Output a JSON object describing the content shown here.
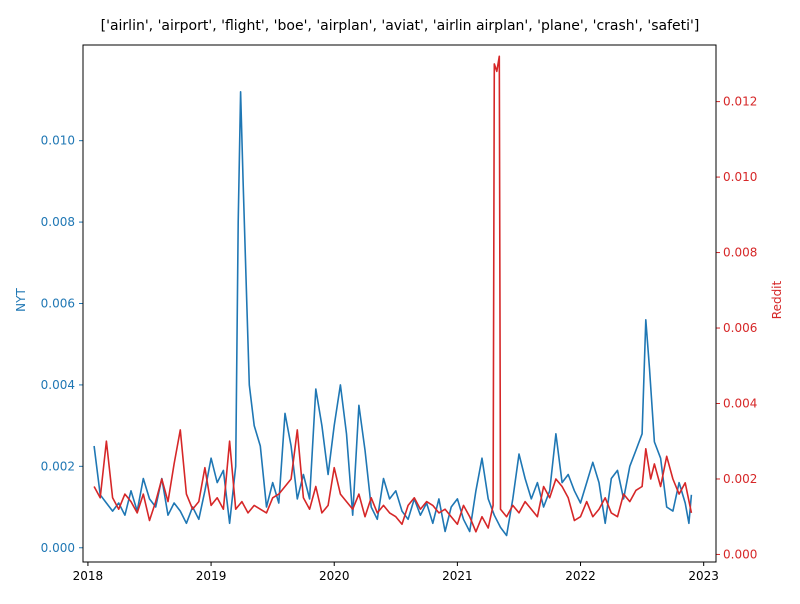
{
  "chart_data": {
    "type": "line",
    "title": "['airlin', 'airport', 'flight', 'boe', 'airplan', 'aviat', 'airlin airplan', 'plane', 'crash', 'safeti']",
    "xlabel": "",
    "x_ticks": [
      "2018",
      "2019",
      "2020",
      "2021",
      "2022",
      "2023"
    ],
    "x_range": [
      2017.96,
      2023.1
    ],
    "grid": false,
    "axes": {
      "left": {
        "label": "NYT",
        "color": "#1f77b4",
        "range": [
          -0.00035,
          0.01235
        ],
        "ticks": [
          "0.000",
          "0.002",
          "0.004",
          "0.006",
          "0.008",
          "0.010"
        ]
      },
      "right": {
        "label": "Reddit",
        "color": "#d62728",
        "range": [
          -0.0002,
          0.0135
        ],
        "ticks": [
          "0.000",
          "0.002",
          "0.004",
          "0.006",
          "0.008",
          "0.010",
          "0.012"
        ]
      }
    },
    "series": [
      {
        "name": "NYT",
        "axis": "left",
        "color": "#1f77b4",
        "points": [
          [
            2018.05,
            0.0025
          ],
          [
            2018.1,
            0.0013
          ],
          [
            2018.15,
            0.0011
          ],
          [
            2018.2,
            0.0009
          ],
          [
            2018.25,
            0.0011
          ],
          [
            2018.3,
            0.0008
          ],
          [
            2018.35,
            0.0014
          ],
          [
            2018.4,
            0.0009
          ],
          [
            2018.45,
            0.0017
          ],
          [
            2018.5,
            0.0012
          ],
          [
            2018.55,
            0.001
          ],
          [
            2018.6,
            0.0017
          ],
          [
            2018.65,
            0.0008
          ],
          [
            2018.7,
            0.0011
          ],
          [
            2018.75,
            0.0009
          ],
          [
            2018.8,
            0.0006
          ],
          [
            2018.85,
            0.001
          ],
          [
            2018.9,
            0.0007
          ],
          [
            2018.95,
            0.0014
          ],
          [
            2019.0,
            0.0022
          ],
          [
            2019.05,
            0.0016
          ],
          [
            2019.1,
            0.0019
          ],
          [
            2019.15,
            0.0006
          ],
          [
            2019.2,
            0.002
          ],
          [
            2019.22,
            0.008
          ],
          [
            2019.24,
            0.0112
          ],
          [
            2019.26,
            0.009
          ],
          [
            2019.29,
            0.006
          ],
          [
            2019.31,
            0.004
          ],
          [
            2019.35,
            0.003
          ],
          [
            2019.4,
            0.0025
          ],
          [
            2019.45,
            0.001
          ],
          [
            2019.5,
            0.0016
          ],
          [
            2019.55,
            0.0011
          ],
          [
            2019.6,
            0.0033
          ],
          [
            2019.65,
            0.0025
          ],
          [
            2019.7,
            0.0012
          ],
          [
            2019.75,
            0.0018
          ],
          [
            2019.8,
            0.0012
          ],
          [
            2019.85,
            0.0039
          ],
          [
            2019.9,
            0.003
          ],
          [
            2019.95,
            0.0018
          ],
          [
            2020.0,
            0.003
          ],
          [
            2020.05,
            0.004
          ],
          [
            2020.1,
            0.0028
          ],
          [
            2020.15,
            0.0008
          ],
          [
            2020.2,
            0.0035
          ],
          [
            2020.25,
            0.0024
          ],
          [
            2020.3,
            0.001
          ],
          [
            2020.35,
            0.0007
          ],
          [
            2020.4,
            0.0017
          ],
          [
            2020.45,
            0.0012
          ],
          [
            2020.5,
            0.0014
          ],
          [
            2020.55,
            0.0009
          ],
          [
            2020.6,
            0.0007
          ],
          [
            2020.65,
            0.0012
          ],
          [
            2020.7,
            0.0008
          ],
          [
            2020.75,
            0.0011
          ],
          [
            2020.8,
            0.0006
          ],
          [
            2020.85,
            0.0012
          ],
          [
            2020.9,
            0.0004
          ],
          [
            2020.95,
            0.001
          ],
          [
            2021.0,
            0.0012
          ],
          [
            2021.05,
            0.0007
          ],
          [
            2021.1,
            0.0004
          ],
          [
            2021.15,
            0.0014
          ],
          [
            2021.2,
            0.0022
          ],
          [
            2021.25,
            0.0012
          ],
          [
            2021.3,
            0.0008
          ],
          [
            2021.35,
            0.0005
          ],
          [
            2021.4,
            0.0003
          ],
          [
            2021.45,
            0.0012
          ],
          [
            2021.5,
            0.0023
          ],
          [
            2021.55,
            0.0017
          ],
          [
            2021.6,
            0.0012
          ],
          [
            2021.65,
            0.0016
          ],
          [
            2021.7,
            0.001
          ],
          [
            2021.75,
            0.0014
          ],
          [
            2021.8,
            0.0028
          ],
          [
            2021.85,
            0.0016
          ],
          [
            2021.9,
            0.0018
          ],
          [
            2021.95,
            0.0014
          ],
          [
            2022.0,
            0.0011
          ],
          [
            2022.05,
            0.0016
          ],
          [
            2022.1,
            0.0021
          ],
          [
            2022.15,
            0.0016
          ],
          [
            2022.2,
            0.0006
          ],
          [
            2022.25,
            0.0017
          ],
          [
            2022.3,
            0.0019
          ],
          [
            2022.35,
            0.0012
          ],
          [
            2022.4,
            0.002
          ],
          [
            2022.45,
            0.0024
          ],
          [
            2022.5,
            0.0028
          ],
          [
            2022.53,
            0.0056
          ],
          [
            2022.56,
            0.0044
          ],
          [
            2022.6,
            0.0026
          ],
          [
            2022.65,
            0.0022
          ],
          [
            2022.7,
            0.001
          ],
          [
            2022.75,
            0.0009
          ],
          [
            2022.8,
            0.0016
          ],
          [
            2022.85,
            0.0011
          ],
          [
            2022.88,
            0.0006
          ],
          [
            2022.9,
            0.0013
          ]
        ]
      },
      {
        "name": "Reddit",
        "axis": "right",
        "color": "#d62728",
        "points": [
          [
            2018.05,
            0.0018
          ],
          [
            2018.1,
            0.0015
          ],
          [
            2018.15,
            0.003
          ],
          [
            2018.2,
            0.0015
          ],
          [
            2018.25,
            0.0012
          ],
          [
            2018.3,
            0.0016
          ],
          [
            2018.35,
            0.0014
          ],
          [
            2018.4,
            0.0011
          ],
          [
            2018.45,
            0.0016
          ],
          [
            2018.5,
            0.0009
          ],
          [
            2018.55,
            0.0014
          ],
          [
            2018.6,
            0.002
          ],
          [
            2018.65,
            0.0014
          ],
          [
            2018.7,
            0.0024
          ],
          [
            2018.75,
            0.0033
          ],
          [
            2018.8,
            0.0016
          ],
          [
            2018.85,
            0.0012
          ],
          [
            2018.9,
            0.0014
          ],
          [
            2018.95,
            0.0023
          ],
          [
            2019.0,
            0.0013
          ],
          [
            2019.05,
            0.0015
          ],
          [
            2019.1,
            0.0012
          ],
          [
            2019.15,
            0.003
          ],
          [
            2019.2,
            0.0012
          ],
          [
            2019.25,
            0.0014
          ],
          [
            2019.3,
            0.0011
          ],
          [
            2019.35,
            0.0013
          ],
          [
            2019.4,
            0.0012
          ],
          [
            2019.45,
            0.0011
          ],
          [
            2019.5,
            0.0015
          ],
          [
            2019.55,
            0.0016
          ],
          [
            2019.6,
            0.0018
          ],
          [
            2019.65,
            0.002
          ],
          [
            2019.7,
            0.0033
          ],
          [
            2019.75,
            0.0015
          ],
          [
            2019.8,
            0.0012
          ],
          [
            2019.85,
            0.0018
          ],
          [
            2019.9,
            0.0011
          ],
          [
            2019.95,
            0.0013
          ],
          [
            2020.0,
            0.0023
          ],
          [
            2020.05,
            0.0016
          ],
          [
            2020.1,
            0.0014
          ],
          [
            2020.15,
            0.0012
          ],
          [
            2020.2,
            0.0016
          ],
          [
            2020.25,
            0.001
          ],
          [
            2020.3,
            0.0015
          ],
          [
            2020.35,
            0.0011
          ],
          [
            2020.4,
            0.0013
          ],
          [
            2020.45,
            0.0011
          ],
          [
            2020.5,
            0.001
          ],
          [
            2020.55,
            0.0008
          ],
          [
            2020.6,
            0.0013
          ],
          [
            2020.65,
            0.0015
          ],
          [
            2020.7,
            0.0012
          ],
          [
            2020.75,
            0.0014
          ],
          [
            2020.8,
            0.0013
          ],
          [
            2020.85,
            0.0011
          ],
          [
            2020.9,
            0.0012
          ],
          [
            2020.95,
            0.001
          ],
          [
            2021.0,
            0.0008
          ],
          [
            2021.05,
            0.0013
          ],
          [
            2021.1,
            0.001
          ],
          [
            2021.15,
            0.0006
          ],
          [
            2021.2,
            0.001
          ],
          [
            2021.25,
            0.0007
          ],
          [
            2021.29,
            0.0013
          ],
          [
            2021.3,
            0.013
          ],
          [
            2021.32,
            0.0128
          ],
          [
            2021.34,
            0.0132
          ],
          [
            2021.35,
            0.0012
          ],
          [
            2021.4,
            0.001
          ],
          [
            2021.45,
            0.0013
          ],
          [
            2021.5,
            0.0011
          ],
          [
            2021.55,
            0.0014
          ],
          [
            2021.6,
            0.0012
          ],
          [
            2021.65,
            0.001
          ],
          [
            2021.7,
            0.0018
          ],
          [
            2021.75,
            0.0015
          ],
          [
            2021.8,
            0.002
          ],
          [
            2021.85,
            0.0018
          ],
          [
            2021.9,
            0.0015
          ],
          [
            2021.95,
            0.0009
          ],
          [
            2022.0,
            0.001
          ],
          [
            2022.05,
            0.0014
          ],
          [
            2022.1,
            0.001
          ],
          [
            2022.15,
            0.0012
          ],
          [
            2022.2,
            0.0015
          ],
          [
            2022.25,
            0.0011
          ],
          [
            2022.3,
            0.001
          ],
          [
            2022.35,
            0.0016
          ],
          [
            2022.4,
            0.0014
          ],
          [
            2022.45,
            0.0017
          ],
          [
            2022.5,
            0.0018
          ],
          [
            2022.53,
            0.0028
          ],
          [
            2022.57,
            0.002
          ],
          [
            2022.6,
            0.0024
          ],
          [
            2022.65,
            0.0018
          ],
          [
            2022.7,
            0.0026
          ],
          [
            2022.75,
            0.002
          ],
          [
            2022.8,
            0.0016
          ],
          [
            2022.85,
            0.0019
          ],
          [
            2022.9,
            0.0011
          ]
        ]
      }
    ]
  }
}
